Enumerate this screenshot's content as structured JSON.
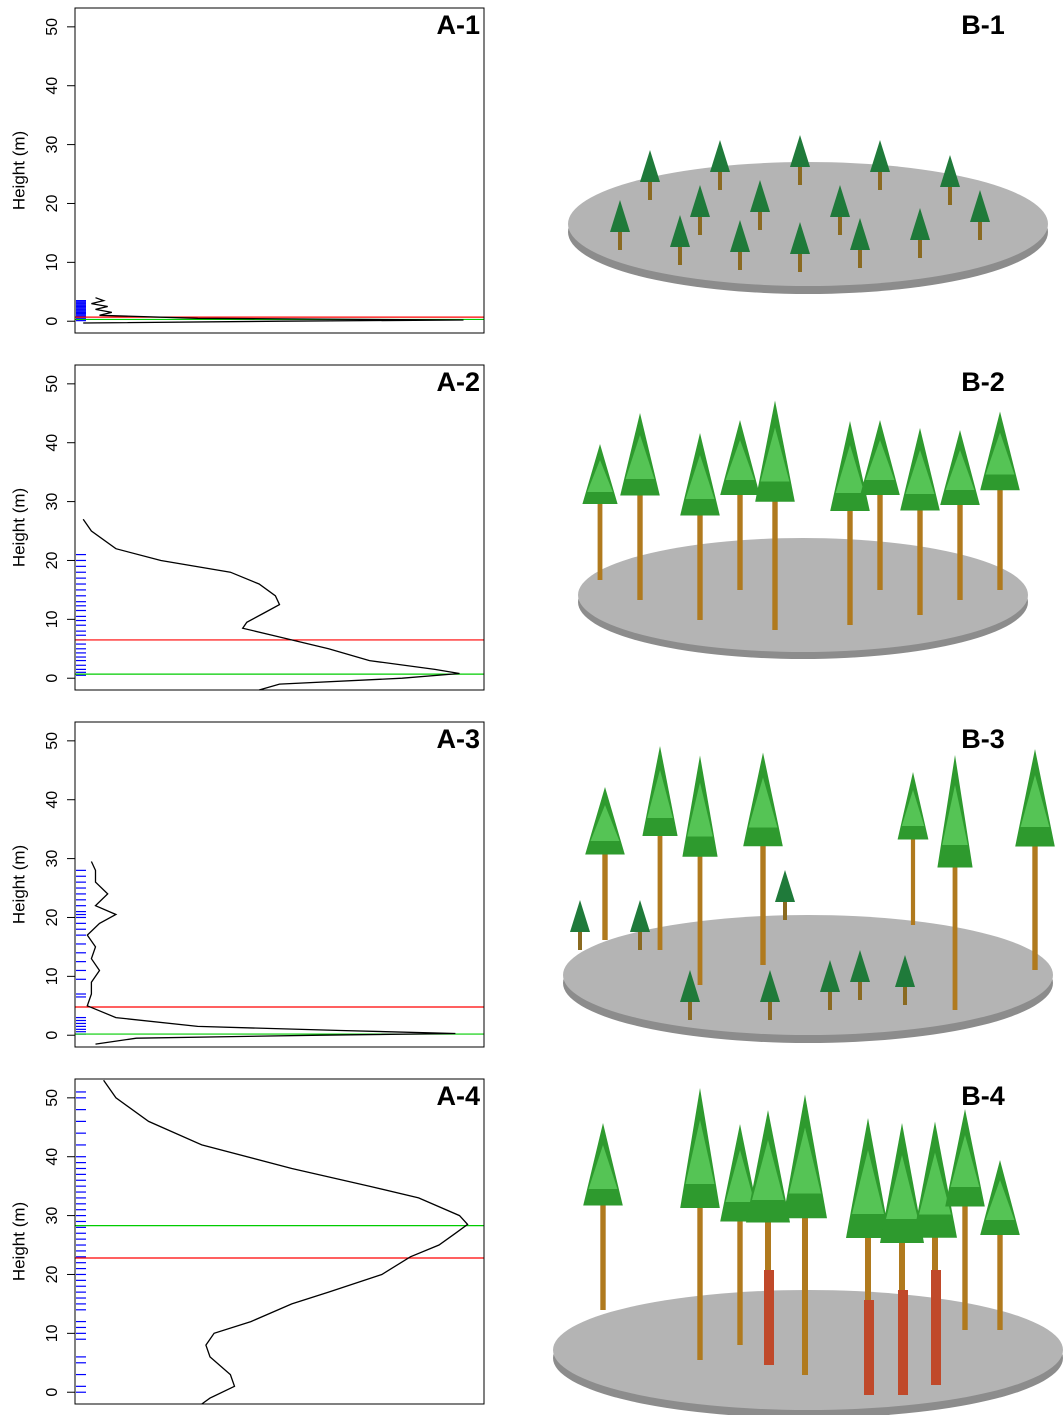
{
  "chart_data": [
    {
      "type": "density",
      "title": "A-1",
      "image_label": "B-1",
      "y_label": "Height (m)",
      "ylim": [
        -2,
        53.2
      ],
      "yticks": [
        0,
        10,
        20,
        30,
        40,
        50
      ],
      "xlim": [
        0,
        1
      ],
      "heights": [
        4,
        3.5,
        3,
        2.5,
        2,
        1.5,
        1,
        0.5,
        0.2,
        0,
        -0.3
      ],
      "density": [
        0.05,
        0.07,
        0.04,
        0.08,
        0.05,
        0.09,
        0.06,
        0.3,
        0.95,
        0.5,
        0.02
      ],
      "rug": [
        0.1,
        0.3,
        0.5,
        0.7,
        0.9,
        1.1,
        1.3,
        1.5,
        1.7,
        1.9,
        2.1,
        2.3,
        2.5,
        2.7,
        2.9,
        3.1,
        3.3,
        3.5
      ],
      "rug_color": "#0000ff",
      "curve_color": "#000000",
      "lines": [
        {
          "value": 0.7,
          "color": "#ff0000"
        },
        {
          "value": 0.3,
          "color": "#00cc00"
        }
      ]
    },
    {
      "type": "density",
      "title": "A-2",
      "image_label": "B-2",
      "y_label": "Height (m)",
      "ylim": [
        -2,
        53.2
      ],
      "yticks": [
        0,
        10,
        20,
        30,
        40,
        50
      ],
      "xlim": [
        0,
        1
      ],
      "heights": [
        27,
        25,
        22,
        20,
        18,
        16,
        14,
        12.5,
        11,
        9.5,
        8.5,
        7,
        5,
        3,
        1.5,
        0.8,
        0,
        -1,
        -2
      ],
      "density": [
        0.02,
        0.04,
        0.1,
        0.21,
        0.38,
        0.45,
        0.49,
        0.5,
        0.46,
        0.42,
        0.41,
        0.5,
        0.62,
        0.72,
        0.88,
        0.94,
        0.8,
        0.5,
        0.45
      ],
      "rug": [
        0.5,
        1,
        1.5,
        2.2,
        3,
        3.6,
        4.3,
        5,
        5.8,
        6.5,
        7.3,
        8,
        9,
        9.8,
        10.5,
        11.5,
        12.3,
        13,
        14,
        15,
        16,
        17,
        18,
        19,
        20,
        21
      ],
      "rug_color": "#0000ff",
      "curve_color": "#000000",
      "lines": [
        {
          "value": 6.5,
          "color": "#ff0000"
        },
        {
          "value": 0.7,
          "color": "#00cc00"
        }
      ]
    },
    {
      "type": "density",
      "title": "A-3",
      "image_label": "B-3",
      "y_label": "Height (m)",
      "ylim": [
        -2,
        53.2
      ],
      "yticks": [
        0,
        10,
        20,
        30,
        40,
        50
      ],
      "xlim": [
        0,
        1
      ],
      "heights": [
        29.5,
        28,
        26,
        24,
        22,
        20.5,
        19,
        17,
        15,
        13,
        11,
        9,
        7,
        5,
        3,
        1.5,
        0.8,
        0.3,
        0,
        -0.5,
        -1.5
      ],
      "density": [
        0.04,
        0.05,
        0.05,
        0.08,
        0.05,
        0.1,
        0.06,
        0.03,
        0.05,
        0.04,
        0.06,
        0.04,
        0.04,
        0.03,
        0.1,
        0.3,
        0.65,
        0.93,
        0.6,
        0.15,
        0.05
      ],
      "rug": [
        0.2,
        0.6,
        1,
        1.5,
        2,
        2.5,
        3,
        6.5,
        7,
        9.5,
        11,
        12.5,
        14,
        15.5,
        17,
        18,
        19,
        20,
        20.5,
        21,
        22,
        23,
        24,
        25,
        26,
        27,
        28
      ],
      "rug_color": "#0000ff",
      "curve_color": "#000000",
      "lines": [
        {
          "value": 4.8,
          "color": "#ff0000"
        },
        {
          "value": 0.2,
          "color": "#00cc00"
        }
      ]
    },
    {
      "type": "density",
      "title": "A-4",
      "image_label": "B-4",
      "y_label": "Height (m)",
      "ylim": [
        -2,
        53.2
      ],
      "yticks": [
        0,
        10,
        20,
        30,
        40,
        50
      ],
      "xlim": [
        0,
        1
      ],
      "heights": [
        53,
        50,
        46,
        42,
        38,
        35,
        33,
        30,
        28.5,
        27,
        25,
        23,
        20,
        17,
        15,
        12,
        10,
        8,
        6,
        3,
        1,
        -1,
        -2
      ],
      "density": [
        0.07,
        0.1,
        0.18,
        0.31,
        0.53,
        0.72,
        0.84,
        0.94,
        0.96,
        0.93,
        0.89,
        0.82,
        0.75,
        0.62,
        0.53,
        0.43,
        0.34,
        0.32,
        0.33,
        0.38,
        0.39,
        0.33,
        0.31
      ],
      "rug": [
        0,
        1,
        3,
        5,
        6,
        9,
        10,
        11,
        12,
        14,
        15,
        16,
        17,
        18,
        19,
        20,
        21,
        22,
        23,
        24,
        25,
        26,
        27,
        28,
        29,
        30,
        31,
        32,
        33,
        34,
        35,
        36,
        37,
        38,
        39,
        40,
        42,
        44,
        46,
        48,
        50,
        51
      ],
      "rug_color": "#0000ff",
      "curve_color": "#000000",
      "lines": [
        {
          "value": 22.8,
          "color": "#ff0000"
        },
        {
          "value": 28.3,
          "color": "#00cc00"
        }
      ]
    }
  ]
}
